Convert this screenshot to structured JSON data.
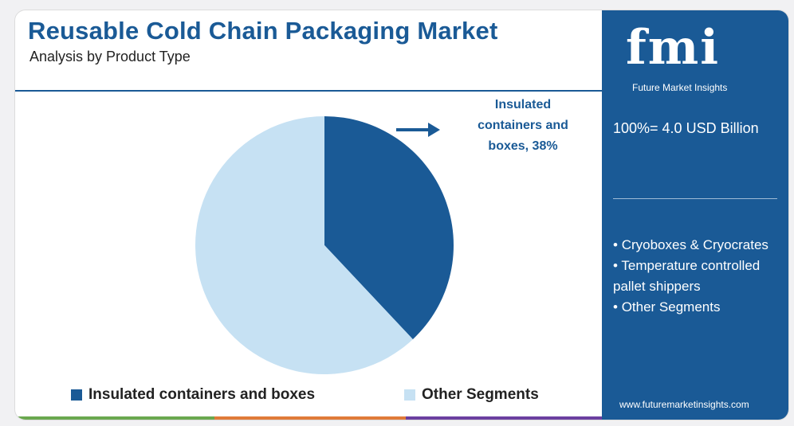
{
  "header": {
    "title": "Reusable Cold Chain Packaging Market",
    "subtitle": "Analysis by Product Type"
  },
  "callout": {
    "line1": "Insulated",
    "line2": "containers and",
    "line3": "boxes, 38%"
  },
  "chart_data": {
    "type": "pie",
    "title": "Reusable Cold Chain Packaging Market",
    "subtitle": "Analysis by Product Type",
    "slices": [
      {
        "label": "Insulated containers and boxes",
        "value": 38,
        "color": "#1a5a96"
      },
      {
        "label": "Other Segments",
        "value": 62,
        "color": "#c6e1f3"
      }
    ],
    "legend_position": "bottom"
  },
  "sidebar": {
    "brand": "fmi",
    "brand_sub": "Future Market Insights",
    "total": "100%= 4.0 USD Billion",
    "segments": [
      "Cryoboxes & Cryocrates",
      "Temperature controlled pallet shippers",
      "Other Segments"
    ],
    "website": "www.futuremarketinsights.com"
  },
  "colors": {
    "primary": "#1a5a96",
    "light": "#c6e1f3",
    "strip_green": "#6aa84f",
    "strip_orange": "#e07b39",
    "strip_purple": "#6b3fa0"
  }
}
